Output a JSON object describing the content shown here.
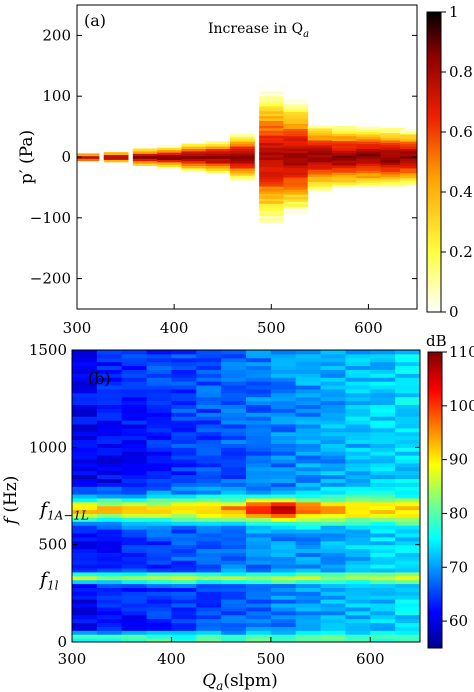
{
  "chart_data": [
    {
      "type": "heatmap",
      "panel_label": "(a)",
      "annotation": "Increase in Q",
      "annotation_sub": "a",
      "ylabel": "p′ (Pa)",
      "xlabel": "",
      "xlim": [
        300,
        650
      ],
      "ylim": [
        -250,
        250
      ],
      "x_ticks": [
        300,
        400,
        500,
        600
      ],
      "y_ticks": [
        200,
        100,
        0,
        -100,
        -200
      ],
      "colorbar": {
        "min": 0,
        "max": 1,
        "ticks": [
          1,
          0.8,
          0.6,
          0.4,
          0.2,
          0
        ],
        "colormap": "hot-reversed"
      },
      "columns": [
        {
          "q": 310,
          "spread": 8,
          "peak": 0.8
        },
        {
          "q": 340,
          "spread": 10,
          "peak": 0.82
        },
        {
          "q": 370,
          "spread": 16,
          "peak": 0.85
        },
        {
          "q": 395,
          "spread": 18,
          "peak": 0.86
        },
        {
          "q": 420,
          "spread": 24,
          "peak": 0.88
        },
        {
          "q": 445,
          "spread": 28,
          "peak": 0.88
        },
        {
          "q": 470,
          "spread": 40,
          "peak": 0.85
        },
        {
          "q": 500,
          "spread": 110,
          "peak": 0.8
        },
        {
          "q": 525,
          "spread": 95,
          "peak": 0.82
        },
        {
          "q": 550,
          "spread": 58,
          "peak": 0.85
        },
        {
          "q": 575,
          "spread": 55,
          "peak": 0.85
        },
        {
          "q": 600,
          "spread": 52,
          "peak": 0.86
        },
        {
          "q": 625,
          "spread": 50,
          "peak": 0.86
        },
        {
          "q": 645,
          "spread": 48,
          "peak": 0.86
        }
      ]
    },
    {
      "type": "heatmap",
      "panel_label": "(b)",
      "xlabel": "Q",
      "xlabel_sub": "a",
      "xlabel_unit": "(slpm)",
      "ylabel": "f (Hz)",
      "xlim": [
        300,
        650
      ],
      "ylim": [
        0,
        1500
      ],
      "x_ticks": [
        300,
        400,
        500,
        600
      ],
      "y_ticks": [
        1500,
        1000,
        500,
        0
      ],
      "colorbar": {
        "min": 55,
        "max": 110,
        "ticks": [
          110,
          100,
          90,
          80,
          70,
          60
        ],
        "unit": "dB",
        "colormap": "jet"
      },
      "mode_labels": [
        {
          "text": "f",
          "sub": "1A−1L",
          "f": 680
        },
        {
          "text": "f",
          "sub": "1l",
          "f": 320
        }
      ],
      "bands": [
        {
          "f": 680,
          "width": 60,
          "level_db": 92,
          "peak_q": 505,
          "peak_db": 108
        },
        {
          "f": 330,
          "width": 25,
          "level_db": 85
        },
        {
          "f": 20,
          "width": 30,
          "level_db": 80
        }
      ],
      "background_db": {
        "low_q": 62,
        "high_q": 74
      }
    }
  ]
}
